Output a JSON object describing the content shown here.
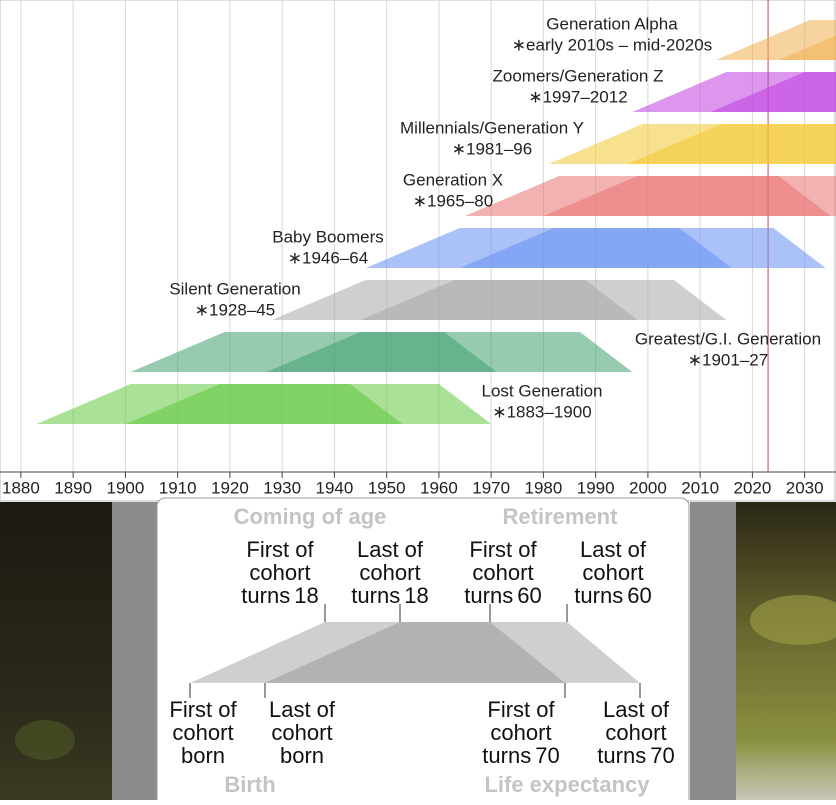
{
  "chart_data": {
    "type": "timeline",
    "series": [
      {
        "name": "Generation Alpha",
        "period": "∗early 2010s – mid-2020s",
        "color": "#f0b050",
        "values": [
          2013,
          2025
        ]
      },
      {
        "name": "Zoomers/Generation Z",
        "period": "∗1997–2012",
        "color": "#c040e0",
        "values": [
          1997,
          2012
        ]
      },
      {
        "name": "Millennials/Generation Y",
        "period": "∗1981–96",
        "color": "#f2c832",
        "values": [
          1981,
          1996
        ]
      },
      {
        "name": "Generation X",
        "period": "∗1965–80",
        "color": "#ea7272",
        "values": [
          1965,
          1980
        ]
      },
      {
        "name": "Baby Boomers",
        "period": "∗1946–64",
        "color": "#6690f2",
        "values": [
          1946,
          1964
        ]
      },
      {
        "name": "Silent Generation",
        "period": "∗1928–45",
        "color": "#a8a8a8",
        "values": [
          1928,
          1945
        ]
      },
      {
        "name": "Greatest/G.I. Generation",
        "period": "∗1901–27",
        "color": "#3fa070",
        "values": [
          1901,
          1927
        ]
      },
      {
        "name": "Lost Generation",
        "period": "∗1883–1900",
        "color": "#62c840",
        "values": [
          1883,
          1900
        ]
      }
    ],
    "xlim": [
      1876,
      2036
    ],
    "xticks": [
      1880,
      1890,
      1900,
      1910,
      1920,
      1930,
      1940,
      1950,
      1960,
      1970,
      1980,
      1990,
      2000,
      2010,
      2020,
      2030
    ],
    "current_year": 2023,
    "grid": true
  },
  "legend": {
    "top_headings": [
      "Coming of age",
      "Retirement"
    ],
    "bottom_headings": [
      "Birth",
      "Life expectancy"
    ],
    "top_labels": [
      {
        "lines": [
          "First of",
          "cohort"
        ],
        "verb": "turns",
        "age": 18
      },
      {
        "lines": [
          "Last of",
          "cohort"
        ],
        "verb": "turns",
        "age": 18
      },
      {
        "lines": [
          "First of",
          "cohort"
        ],
        "verb": "turns",
        "age": 60
      },
      {
        "lines": [
          "Last of",
          "cohort"
        ],
        "verb": "turns",
        "age": 60
      }
    ],
    "bottom_labels": [
      {
        "lines": [
          "First of",
          "cohort",
          "born"
        ]
      },
      {
        "lines": [
          "Last of",
          "cohort",
          "born"
        ]
      },
      {
        "lines": [
          "First of",
          "cohort"
        ],
        "verb": "turns",
        "age": 70
      },
      {
        "lines": [
          "Last of",
          "cohort"
        ],
        "verb": "turns",
        "age": 70
      }
    ]
  }
}
